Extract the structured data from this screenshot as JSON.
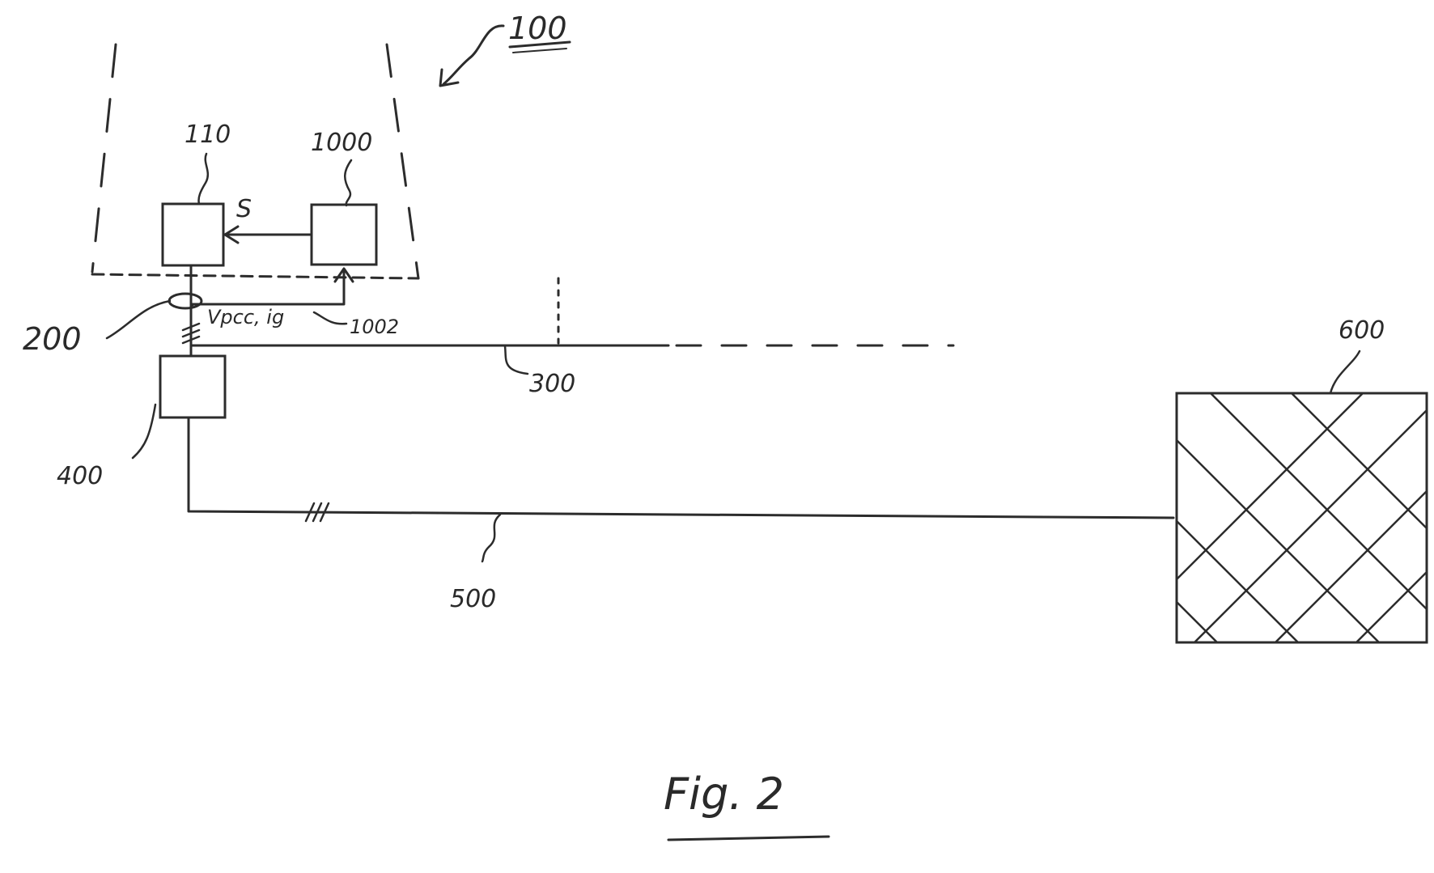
{
  "diagram": {
    "figure_caption": "Fig. 2",
    "labels": {
      "system": "100",
      "block_110": "110",
      "block_1000": "1000",
      "signal_s": "S",
      "link_1002": "1002",
      "signals_vpcc": "Vpcc, ig",
      "ref_200": "200",
      "ref_300": "300",
      "ref_400": "400",
      "ref_500": "500",
      "ref_600": "600"
    },
    "colors": {
      "ink": "#2c2c2c",
      "paper": "#ffffff"
    }
  }
}
